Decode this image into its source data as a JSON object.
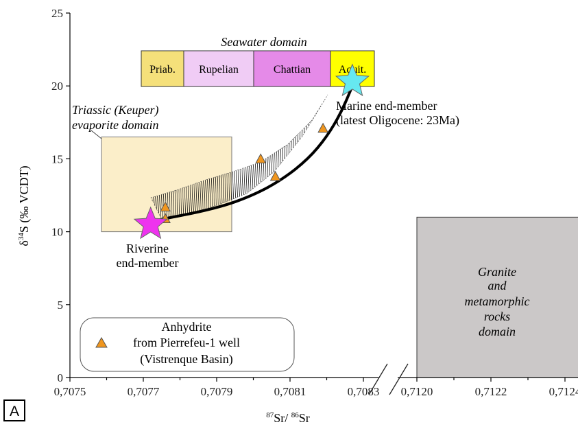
{
  "panel_label": "A",
  "chart_data": {
    "type": "scatter",
    "xlabel": "87Sr/ 86Sr",
    "xlabel_parts": {
      "sup1": "87",
      "base1": "Sr/ ",
      "sup2": "86",
      "base2": "Sr"
    },
    "ylabel": "δ34S (‰ VCDT)",
    "ylabel_parts": {
      "pre": "δ",
      "sup": "34",
      "post": "S (‰ VCDT)"
    },
    "ylim": [
      0,
      25
    ],
    "xlim_left": [
      0.7075,
      0.7084
    ],
    "xlim_right": [
      0.712,
      0.71245
    ],
    "x_ticks_left": [
      "0,7075",
      "0,7077",
      "0,7079",
      "0,7081",
      "0,7083"
    ],
    "x_ticks_right": [
      "0,7120",
      "0,7122",
      "0,7124"
    ],
    "y_ticks": [
      "0",
      "5",
      "10",
      "15",
      "20",
      "25"
    ],
    "series": [
      {
        "name": "Anhydrite from Pierrefeu-1 well (Vistrenque Basin)",
        "marker": "triangle",
        "color": "#f0961e",
        "x": [
          0.70776,
          0.70776,
          0.70802,
          0.70806,
          0.70819
        ],
        "y": [
          10.9,
          11.7,
          15.0,
          13.8,
          17.1
        ]
      }
    ],
    "end_members": [
      {
        "name": "Riverine end-member",
        "x": 0.70772,
        "y": 10.5,
        "color": "#ee33ee"
      },
      {
        "name": "Marine end-member (latest Oligocene: 23Ma)",
        "x": 0.70827,
        "y": 20.3,
        "color": "#66e8f0"
      }
    ],
    "mixing_curve": {
      "x": [
        0.70772,
        0.7079,
        0.708,
        0.70808,
        0.70815,
        0.7082,
        0.70824,
        0.70827
      ],
      "y": [
        10.7,
        11.6,
        12.5,
        13.6,
        15.0,
        16.5,
        18.2,
        20.0
      ]
    },
    "domains": {
      "seawater": {
        "title": "Seawater domain",
        "ages": [
          {
            "label": "Priab.",
            "color": "#f5e07a",
            "x": [
              0.70755,
              0.70781
            ]
          },
          {
            "label": "Rupelian",
            "color": "#f0ccf5",
            "x": [
              0.70781,
              0.70805
            ]
          },
          {
            "label": "Chattian",
            "color": "#e58ae8",
            "x": [
              0.70805,
              0.70826
            ]
          },
          {
            "label": "Aquit.",
            "color": "#ffff00",
            "x": [
              0.70826,
              0.70838
            ]
          }
        ],
        "y": [
          20,
          22.5
        ]
      },
      "triassic": {
        "title_line1": "Triassic (Keuper)",
        "title_line2": "evaporite domain",
        "color": "#fbeec9",
        "x": [
          0.7075,
          0.7079
        ],
        "y": [
          10,
          16.5
        ]
      },
      "granite": {
        "line1": "Granite",
        "line2": "and",
        "line3": "metamorphic",
        "line4": "rocks",
        "line5": "domain",
        "color": "#cbc8c8",
        "x": [
          0.712,
          0.71245
        ],
        "y": [
          0,
          11
        ]
      }
    },
    "annotations": {
      "riverine_line1": "Riverine",
      "riverine_line2": "end-member",
      "marine_line1": "Marine end-member",
      "marine_line2": "(latest Oligocene: 23Ma)"
    },
    "legend": {
      "line1": "Anhydrite",
      "line2": "from Pierrefeu-1 well",
      "line3": "(Vistrenque Basin)",
      "placement": "bottom-left"
    },
    "grid": false
  }
}
